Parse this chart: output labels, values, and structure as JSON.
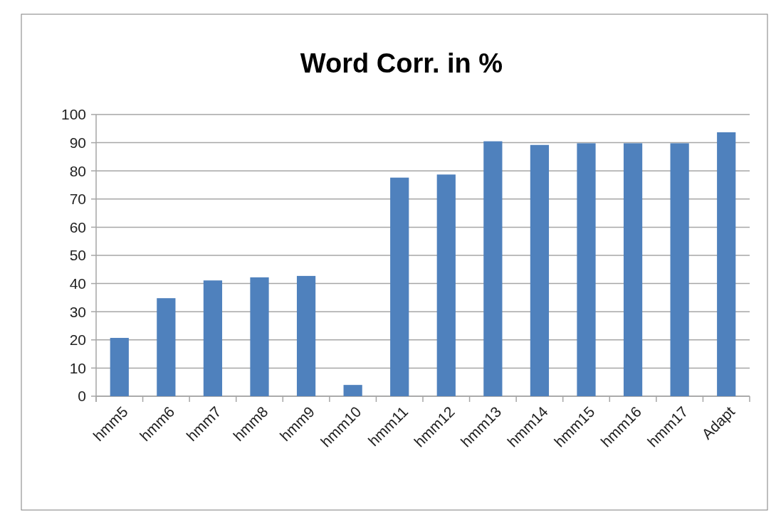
{
  "chart_data": {
    "type": "bar",
    "title": "Word Corr. in %",
    "categories": [
      "hmm5",
      "hmm6",
      "hmm7",
      "hmm8",
      "hmm9",
      "hmm10",
      "hmm11",
      "hmm12",
      "hmm13",
      "hmm14",
      "hmm15",
      "hmm16",
      "hmm17",
      "Adapt"
    ],
    "values": [
      20.7,
      34.8,
      41.1,
      42.2,
      42.7,
      4.0,
      77.6,
      78.7,
      90.5,
      89.2,
      89.8,
      89.8,
      89.8,
      93.7
    ],
    "color": "#4f81bd",
    "ylim": [
      0,
      100
    ],
    "yticks": [
      0,
      10,
      20,
      30,
      40,
      50,
      60,
      70,
      80,
      90,
      100
    ],
    "grid": "y"
  }
}
